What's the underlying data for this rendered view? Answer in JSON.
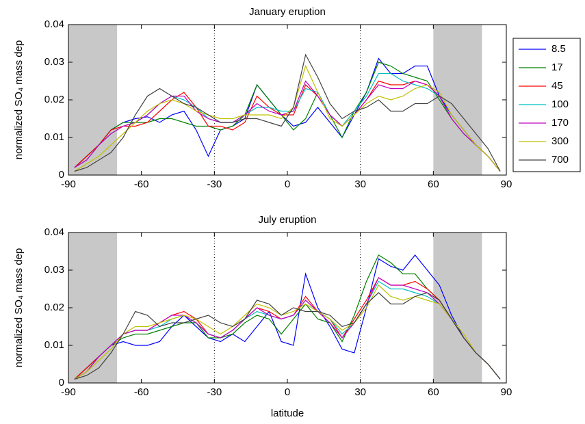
{
  "chart_data": [
    {
      "type": "line",
      "title": "January eruption",
      "ylabel": "normalized SO₄ mass dep",
      "x": [
        -87.5,
        -82.5,
        -77.5,
        -72.5,
        -67.5,
        -62.5,
        -57.5,
        -52.5,
        -47.5,
        -42.5,
        -37.5,
        -32.5,
        -27.5,
        -22.5,
        -17.5,
        -12.5,
        -7.5,
        -2.5,
        2.5,
        7.5,
        12.5,
        17.5,
        22.5,
        27.5,
        32.5,
        37.5,
        42.5,
        47.5,
        52.5,
        57.5,
        62.5,
        67.5,
        72.5,
        77.5,
        82.5,
        87.5
      ],
      "xlim": [
        -90,
        90
      ],
      "xticks": [
        -90,
        -60,
        -30,
        0,
        30,
        60,
        90
      ],
      "ylim": [
        0,
        0.04
      ],
      "yticks": [
        0,
        0.01,
        0.02,
        0.03,
        0.04
      ],
      "shaded": [
        [
          -90,
          -70
        ],
        [
          60,
          80
        ]
      ],
      "vlines": [
        -30,
        30
      ],
      "legend": "outside-right",
      "series": [
        {
          "name": "8.5",
          "color": "#0000ff",
          "values": [
            0.002,
            0.005,
            0.008,
            0.012,
            0.014,
            0.015,
            0.0155,
            0.014,
            0.016,
            0.017,
            0.012,
            0.005,
            0.012,
            0.013,
            0.015,
            0.024,
            0.02,
            0.016,
            0.013,
            0.014,
            0.018,
            0.014,
            0.01,
            0.016,
            0.022,
            0.031,
            0.027,
            0.027,
            0.029,
            0.029,
            0.021,
            0.016,
            0.012,
            0.008,
            0.005,
            0.001
          ]
        },
        {
          "name": "17",
          "color": "#008000",
          "values": [
            0.002,
            0.005,
            0.008,
            0.012,
            0.014,
            0.014,
            0.014,
            0.015,
            0.015,
            0.014,
            0.013,
            0.013,
            0.012,
            0.013,
            0.016,
            0.024,
            0.02,
            0.016,
            0.012,
            0.015,
            0.022,
            0.016,
            0.01,
            0.017,
            0.022,
            0.03,
            0.029,
            0.027,
            0.026,
            0.025,
            0.02,
            0.015,
            0.011,
            0.008,
            0.005,
            0.001
          ]
        },
        {
          "name": "45",
          "color": "#ff0000",
          "values": [
            0.002,
            0.005,
            0.008,
            0.012,
            0.013,
            0.013,
            0.014,
            0.017,
            0.02,
            0.022,
            0.018,
            0.013,
            0.013,
            0.012,
            0.014,
            0.021,
            0.018,
            0.016,
            0.016,
            0.024,
            0.021,
            0.016,
            0.013,
            0.016,
            0.02,
            0.025,
            0.024,
            0.024,
            0.025,
            0.024,
            0.021,
            0.015,
            0.011,
            0.008,
            0.005,
            0.001
          ]
        },
        {
          "name": "100",
          "color": "#00c0c0",
          "values": [
            0.002,
            0.004,
            0.008,
            0.011,
            0.013,
            0.014,
            0.016,
            0.019,
            0.021,
            0.02,
            0.018,
            0.015,
            0.014,
            0.014,
            0.016,
            0.018,
            0.018,
            0.017,
            0.017,
            0.023,
            0.022,
            0.016,
            0.013,
            0.017,
            0.021,
            0.027,
            0.027,
            0.025,
            0.024,
            0.023,
            0.021,
            0.015,
            0.011,
            0.008,
            0.005,
            0.001
          ]
        },
        {
          "name": "170",
          "color": "#c000c0",
          "values": [
            0.002,
            0.004,
            0.008,
            0.011,
            0.013,
            0.014,
            0.016,
            0.019,
            0.021,
            0.021,
            0.017,
            0.015,
            0.014,
            0.014,
            0.016,
            0.019,
            0.017,
            0.016,
            0.017,
            0.025,
            0.021,
            0.016,
            0.013,
            0.016,
            0.02,
            0.024,
            0.023,
            0.023,
            0.025,
            0.024,
            0.021,
            0.015,
            0.011,
            0.008,
            0.005,
            0.001
          ]
        },
        {
          "name": "300",
          "color": "#c0c000",
          "values": [
            0.001,
            0.003,
            0.005,
            0.008,
            0.011,
            0.014,
            0.017,
            0.019,
            0.02,
            0.019,
            0.017,
            0.016,
            0.015,
            0.015,
            0.016,
            0.016,
            0.016,
            0.015,
            0.018,
            0.029,
            0.022,
            0.015,
            0.013,
            0.016,
            0.019,
            0.021,
            0.02,
            0.021,
            0.023,
            0.024,
            0.022,
            0.016,
            0.012,
            0.008,
            0.005,
            0.001
          ]
        },
        {
          "name": "700",
          "color": "#404040",
          "values": [
            0.001,
            0.002,
            0.004,
            0.006,
            0.01,
            0.016,
            0.021,
            0.023,
            0.021,
            0.019,
            0.018,
            0.016,
            0.014,
            0.014,
            0.015,
            0.015,
            0.014,
            0.013,
            0.018,
            0.032,
            0.026,
            0.019,
            0.015,
            0.017,
            0.018,
            0.02,
            0.017,
            0.017,
            0.019,
            0.019,
            0.021,
            0.019,
            0.015,
            0.011,
            0.007,
            0.001
          ]
        }
      ]
    },
    {
      "type": "line",
      "title": "July eruption",
      "ylabel": "normalized SO₄ mass dep",
      "xlabel": "latitude",
      "x": [
        -87.5,
        -82.5,
        -77.5,
        -72.5,
        -67.5,
        -62.5,
        -57.5,
        -52.5,
        -47.5,
        -42.5,
        -37.5,
        -32.5,
        -27.5,
        -22.5,
        -17.5,
        -12.5,
        -7.5,
        -2.5,
        2.5,
        7.5,
        12.5,
        17.5,
        22.5,
        27.5,
        32.5,
        37.5,
        42.5,
        47.5,
        52.5,
        57.5,
        62.5,
        67.5,
        72.5,
        77.5,
        82.5,
        87.5
      ],
      "xlim": [
        -90,
        90
      ],
      "xticks": [
        -90,
        -60,
        -30,
        0,
        30,
        60,
        90
      ],
      "ylim": [
        0,
        0.04
      ],
      "yticks": [
        0,
        0.01,
        0.02,
        0.03,
        0.04
      ],
      "shaded": [
        [
          -90,
          -70
        ],
        [
          60,
          80
        ]
      ],
      "vlines": [
        -30,
        30
      ],
      "series": [
        {
          "color": "#0000ff",
          "values": [
            0.001,
            0.004,
            0.007,
            0.01,
            0.011,
            0.01,
            0.01,
            0.011,
            0.015,
            0.018,
            0.015,
            0.012,
            0.011,
            0.013,
            0.011,
            0.015,
            0.019,
            0.011,
            0.01,
            0.029,
            0.02,
            0.015,
            0.009,
            0.008,
            0.02,
            0.033,
            0.031,
            0.03,
            0.034,
            0.03,
            0.026,
            0.018,
            0.012,
            0.008,
            0.005,
            0.001
          ]
        },
        {
          "color": "#008000",
          "values": [
            0.001,
            0.004,
            0.007,
            0.01,
            0.012,
            0.013,
            0.013,
            0.014,
            0.015,
            0.016,
            0.016,
            0.012,
            0.012,
            0.013,
            0.016,
            0.018,
            0.017,
            0.013,
            0.017,
            0.021,
            0.017,
            0.016,
            0.011,
            0.018,
            0.027,
            0.034,
            0.032,
            0.029,
            0.029,
            0.025,
            0.022,
            0.017,
            0.012,
            0.008,
            0.005,
            0.001
          ]
        },
        {
          "color": "#ff0000",
          "values": [
            0.001,
            0.004,
            0.007,
            0.01,
            0.013,
            0.014,
            0.014,
            0.016,
            0.018,
            0.019,
            0.017,
            0.013,
            0.012,
            0.014,
            0.017,
            0.02,
            0.019,
            0.017,
            0.018,
            0.023,
            0.019,
            0.017,
            0.012,
            0.017,
            0.022,
            0.028,
            0.026,
            0.026,
            0.027,
            0.025,
            0.022,
            0.017,
            0.012,
            0.008,
            0.005,
            0.001
          ]
        },
        {
          "color": "#00c0c0",
          "values": [
            0.001,
            0.003,
            0.007,
            0.01,
            0.013,
            0.014,
            0.014,
            0.015,
            0.017,
            0.018,
            0.016,
            0.013,
            0.012,
            0.014,
            0.017,
            0.019,
            0.018,
            0.017,
            0.018,
            0.022,
            0.019,
            0.017,
            0.013,
            0.016,
            0.021,
            0.027,
            0.025,
            0.025,
            0.024,
            0.023,
            0.021,
            0.017,
            0.012,
            0.008,
            0.005,
            0.001
          ]
        },
        {
          "color": "#c000c0",
          "values": [
            0.001,
            0.003,
            0.007,
            0.01,
            0.013,
            0.014,
            0.014,
            0.016,
            0.018,
            0.018,
            0.016,
            0.013,
            0.012,
            0.014,
            0.017,
            0.02,
            0.018,
            0.017,
            0.018,
            0.022,
            0.019,
            0.016,
            0.012,
            0.016,
            0.021,
            0.028,
            0.026,
            0.026,
            0.025,
            0.024,
            0.021,
            0.017,
            0.012,
            0.008,
            0.005,
            0.001
          ]
        },
        {
          "color": "#c0c000",
          "values": [
            0.001,
            0.003,
            0.006,
            0.009,
            0.013,
            0.015,
            0.015,
            0.016,
            0.017,
            0.018,
            0.017,
            0.015,
            0.013,
            0.015,
            0.018,
            0.021,
            0.02,
            0.018,
            0.019,
            0.021,
            0.019,
            0.017,
            0.014,
            0.016,
            0.02,
            0.026,
            0.023,
            0.022,
            0.023,
            0.022,
            0.021,
            0.017,
            0.013,
            0.008,
            0.005,
            0.001
          ]
        },
        {
          "color": "#404040",
          "values": [
            0.001,
            0.002,
            0.004,
            0.008,
            0.013,
            0.019,
            0.018,
            0.015,
            0.016,
            0.016,
            0.017,
            0.018,
            0.016,
            0.015,
            0.017,
            0.022,
            0.021,
            0.018,
            0.02,
            0.019,
            0.019,
            0.018,
            0.015,
            0.016,
            0.021,
            0.024,
            0.021,
            0.021,
            0.023,
            0.024,
            0.022,
            0.017,
            0.012,
            0.008,
            0.005,
            0.001
          ]
        }
      ]
    }
  ]
}
